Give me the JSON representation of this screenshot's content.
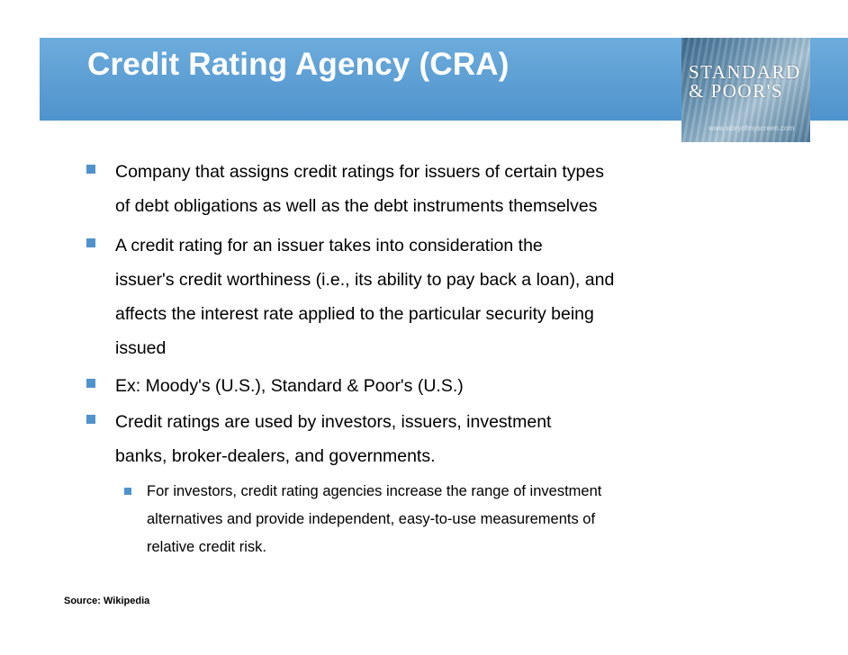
{
  "slide": {
    "title": "Credit Rating Agency (CRA)",
    "logo": {
      "line1": "STANDARD",
      "line2": "& POOR'S",
      "url": "www.storyofmyscreen.com"
    },
    "bullets": [
      {
        "lines": [
          "Company that assigns credit ratings for issuers of certain types",
          "of debt obligations as well as the debt instruments themselves"
        ]
      },
      {
        "lines": [
          "A credit rating for an issuer takes into consideration the",
          "issuer's credit worthiness (i.e., its ability to pay back a loan), and",
          "affects the interest rate applied to the particular security being",
          "issued"
        ]
      },
      {
        "lines": [
          "Ex: Moody's (U.S.), Standard & Poor's (U.S.)"
        ]
      },
      {
        "lines": [
          "Credit ratings are used by investors, issuers, investment",
          "banks, broker-dealers, and governments."
        ]
      }
    ],
    "sub_bullets": [
      {
        "lines": [
          "For investors, credit rating agencies increase the range of investment",
          "alternatives and provide independent, easy-to-use measurements of",
          "relative credit risk."
        ]
      }
    ],
    "source": "Source: Wikipedia"
  },
  "colors": {
    "title_bar": "#5a9fd4",
    "bullet": "#4f93cd",
    "title_text": "#ffffff"
  }
}
